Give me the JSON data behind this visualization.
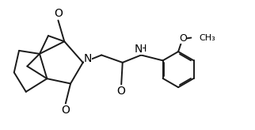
{
  "bg_color": "#ffffff",
  "line_color": "#1a1a1a",
  "line_width": 1.4,
  "font_size": 8.5,
  "figsize": [
    3.22,
    1.64
  ],
  "dpi": 100,
  "xlim": [
    0,
    10.2
  ],
  "ylim": [
    0,
    5.2
  ]
}
